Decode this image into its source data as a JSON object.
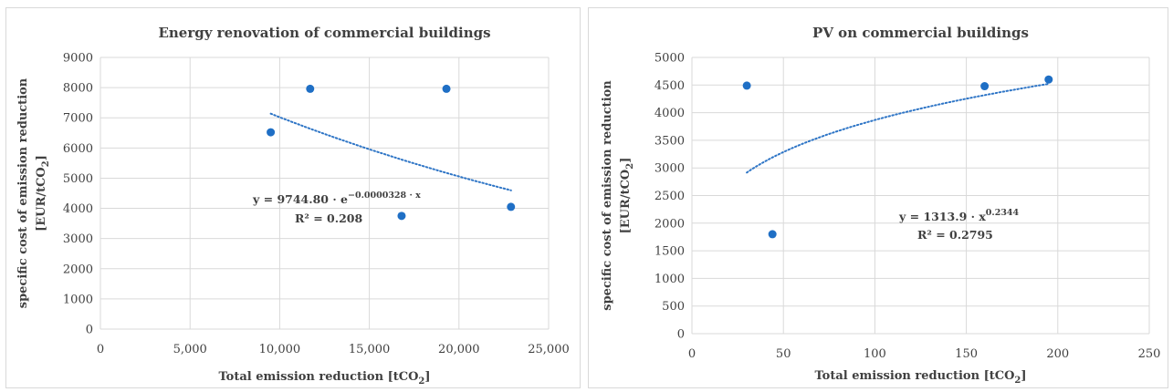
{
  "chart_data": [
    {
      "type": "scatter",
      "title": "Energy renovation of commercial buildings",
      "xlabel": "Total emission reduction [tCO",
      "xlabel_sub": "2",
      "xlabel_end": "]",
      "ylabel_line1": "specific cost of emission reduction",
      "ylabel_line2": "[EUR/tCO",
      "ylabel_sub": "2",
      "ylabel_end": "]",
      "xlim": [
        0,
        25000
      ],
      "ylim": [
        0,
        9000
      ],
      "x_ticks": [
        "0",
        "5,000",
        "10,000",
        "15,000",
        "20,000",
        "25,000"
      ],
      "y_ticks": [
        "0",
        "1000",
        "2000",
        "3000",
        "4000",
        "5000",
        "6000",
        "7000",
        "8000",
        "9000"
      ],
      "grid": true,
      "points": [
        {
          "x": 9500,
          "y": 6520
        },
        {
          "x": 11700,
          "y": 7960
        },
        {
          "x": 16800,
          "y": 3750
        },
        {
          "x": 19300,
          "y": 7960
        },
        {
          "x": 22900,
          "y": 4050
        }
      ],
      "trendline": {
        "type": "exponential",
        "a": 9744.8,
        "b": -3.28e-05,
        "x_range": [
          9500,
          22900
        ]
      },
      "equation": {
        "prefix": "y = 9744.80 · e",
        "sup": "−0.0000328 · x",
        "r2": "R² = 0.208"
      },
      "colors": {
        "points": "#1f6fc5",
        "trend": "#2e75c6",
        "grid": "#d9d9d9"
      }
    },
    {
      "type": "scatter",
      "title": "PV on commercial buildings",
      "xlabel": "Total emission reduction [tCO",
      "xlabel_sub": "2",
      "xlabel_end": "]",
      "ylabel_line1": "specific cost of emission reduction",
      "ylabel_line2": "[EUR/tCO",
      "ylabel_sub": "2",
      "ylabel_end": "]",
      "xlim": [
        0,
        250
      ],
      "ylim": [
        0,
        5000
      ],
      "x_ticks": [
        "0",
        "50",
        "100",
        "150",
        "200",
        "250"
      ],
      "y_ticks": [
        "0",
        "500",
        "1000",
        "1500",
        "2000",
        "2500",
        "3000",
        "3500",
        "4000",
        "4500",
        "5000"
      ],
      "grid": true,
      "points": [
        {
          "x": 30,
          "y": 4490
        },
        {
          "x": 44,
          "y": 1800
        },
        {
          "x": 160,
          "y": 4480
        },
        {
          "x": 195,
          "y": 4600
        }
      ],
      "trendline": {
        "type": "power",
        "a": 1313.9,
        "b": 0.2344,
        "x_range": [
          30,
          195
        ]
      },
      "equation": {
        "prefix": "y = 1313.9 · x",
        "sup": "0.2344",
        "r2": "R² = 0.2795"
      },
      "colors": {
        "points": "#1f6fc5",
        "trend": "#2e75c6",
        "grid": "#d9d9d9"
      }
    }
  ]
}
